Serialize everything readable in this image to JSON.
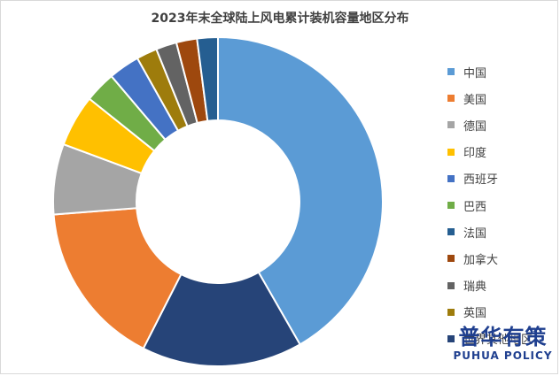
{
  "chart_data": {
    "type": "pie",
    "title": "2023年末全球陆上风电累计装机容量地区分布",
    "donut": true,
    "legend_position": "right",
    "slices": [
      {
        "label": "中国",
        "value": 41.0,
        "color": "#5b9bd5"
      },
      {
        "label": "世界其他地区",
        "value": 15.5,
        "color": "#264478"
      },
      {
        "label": "美国",
        "value": 16.0,
        "color": "#ed7d31"
      },
      {
        "label": "德国",
        "value": 6.8,
        "color": "#a5a5a5"
      },
      {
        "label": "印度",
        "value": 5.0,
        "color": "#ffc000"
      },
      {
        "label": "巴西",
        "value": 3.0,
        "color": "#70ad47"
      },
      {
        "label": "西班牙",
        "value": 3.0,
        "color": "#4472c4"
      },
      {
        "label": "英国",
        "value": 2.0,
        "color": "#9e7c0c"
      },
      {
        "label": "瑞典",
        "value": 2.0,
        "color": "#636363"
      },
      {
        "label": "加拿大",
        "value": 2.0,
        "color": "#9e480e"
      },
      {
        "label": "法国",
        "value": 2.0,
        "color": "#255e91"
      }
    ],
    "legend_order": [
      "中国",
      "美国",
      "德国",
      "印度",
      "西班牙",
      "巴西",
      "法国",
      "加拿大",
      "瑞典",
      "英国",
      "世界其他地区"
    ]
  },
  "watermark": {
    "cn": "普华有策",
    "en": "PUHUA POLICY"
  }
}
